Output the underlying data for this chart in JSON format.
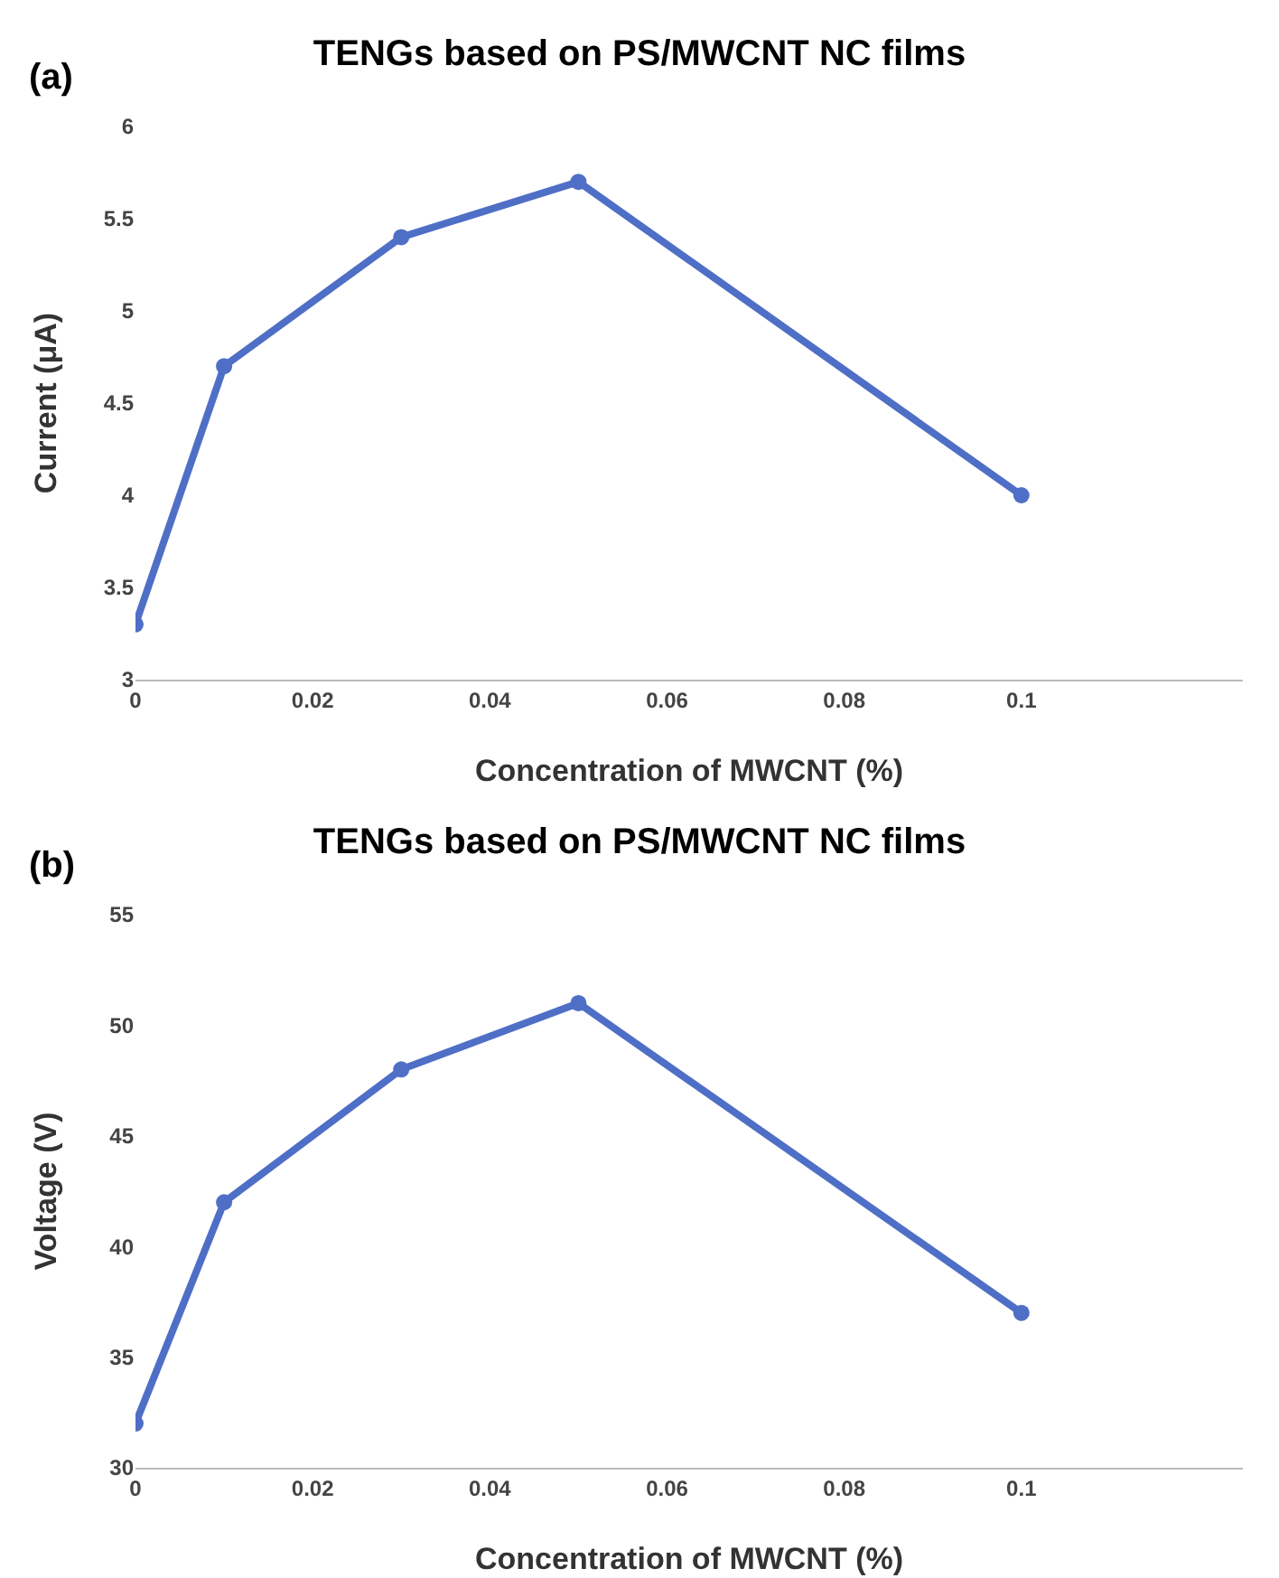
{
  "chart_data": [
    {
      "type": "line",
      "title": "TENGs based on PS/MWCNT NC films",
      "xlabel": "Concentration of MWCNT (%)",
      "ylabel": "Current (μA)",
      "annotations": [
        "(a)"
      ],
      "x": [
        0,
        0.01,
        0.03,
        0.05,
        0.1
      ],
      "series": [
        {
          "color": "#4f6fc6",
          "values": [
            3.3,
            4.7,
            5.4,
            5.7,
            4.0
          ]
        }
      ],
      "xlim": [
        0,
        0.125
      ],
      "xticks": [
        0,
        0.02,
        0.04,
        0.06,
        0.08,
        0.1
      ],
      "ylim": [
        3,
        6
      ],
      "yticks": [
        3,
        3.5,
        4,
        4.5,
        5,
        5.5,
        6
      ],
      "marker": "circle",
      "line_style": "solid"
    },
    {
      "type": "line",
      "title": "TENGs based on PS/MWCNT NC films",
      "xlabel": "Concentration of MWCNT (%)",
      "ylabel": "Voltage (V)",
      "annotations": [
        "(b)"
      ],
      "x": [
        0,
        0.01,
        0.03,
        0.05,
        0.1
      ],
      "series": [
        {
          "color": "#4f6fc6",
          "values": [
            32,
            42,
            48,
            51,
            37
          ]
        }
      ],
      "xlim": [
        0,
        0.125
      ],
      "xticks": [
        0,
        0.02,
        0.04,
        0.06,
        0.08,
        0.1
      ],
      "ylim": [
        30,
        55
      ],
      "yticks": [
        30,
        35,
        40,
        45,
        50,
        55
      ],
      "marker": "circle",
      "line_style": "solid"
    }
  ]
}
